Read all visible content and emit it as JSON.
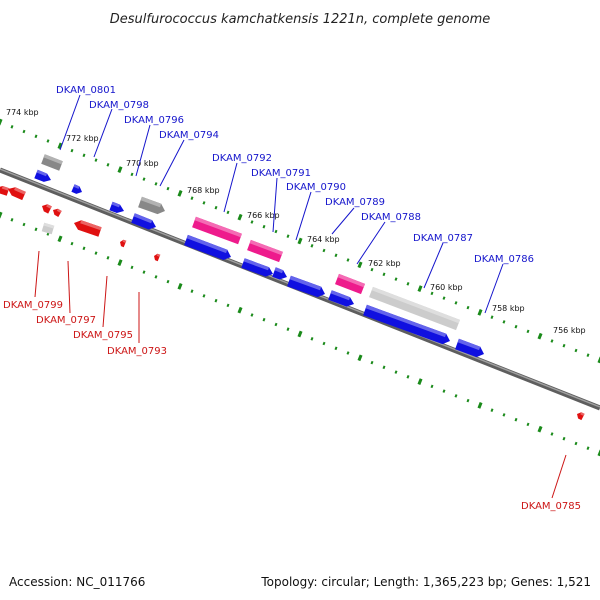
{
  "title": "Desulfurococcus kamchatkensis 1221n, complete genome",
  "footer": {
    "accession": "Accession: NC_011766",
    "summary": "Topology: circular; Length: 1,365,223 bp; Genes: 1,521"
  },
  "colors": {
    "backbone": "#7a7a7a",
    "forward": "#1010e0",
    "reverse": "#e01010",
    "pseudo": "#ee1b8c",
    "other": "#888888",
    "light": "#cccccc",
    "tick": "#1a8a1a",
    "forward_label": "#1515cc",
    "reverse_label": "#cc1515"
  },
  "kbp_labels": [
    "774 kbp",
    "772 kbp",
    "770 kbp",
    "768 kbp",
    "766 kbp",
    "764 kbp",
    "762 kbp",
    "760 kbp",
    "758 kbp",
    "756 kbp"
  ],
  "forward_labels": [
    "DKAM_0801",
    "DKAM_0798",
    "DKAM_0796",
    "DKAM_0794",
    "DKAM_0792",
    "DKAM_0791",
    "DKAM_0790",
    "DKAM_0789",
    "DKAM_0788",
    "DKAM_0787",
    "DKAM_0786"
  ],
  "reverse_labels": [
    "DKAM_0799",
    "DKAM_0797",
    "DKAM_0795",
    "DKAM_0793",
    "DKAM_0785"
  ]
}
